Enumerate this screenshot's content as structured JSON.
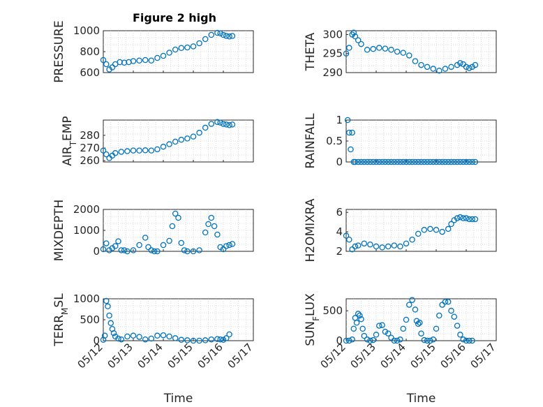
{
  "figure_title": "Figure 2 high",
  "colors": {
    "marker": "#0072BD",
    "axis": "#262626",
    "grid": "#d0d0d0"
  },
  "chart_data": [
    {
      "type": "scatter",
      "id": "pressure",
      "ylabel_parts": [
        "PRESSURE"
      ],
      "ylim": [
        600,
        1000
      ],
      "yticks": [
        600,
        800,
        1000
      ],
      "xlim": [
        "05/12",
        "05/17"
      ],
      "xticks": [],
      "grid": true,
      "x": [
        0.0,
        0.1,
        0.2,
        0.3,
        0.4,
        0.55,
        0.7,
        0.85,
        1.0,
        1.2,
        1.4,
        1.6,
        1.8,
        2.0,
        2.2,
        2.4,
        2.6,
        2.8,
        3.0,
        3.2,
        3.4,
        3.6,
        3.8,
        3.9,
        4.0,
        4.1,
        4.2,
        4.3
      ],
      "y": [
        720,
        680,
        630,
        650,
        680,
        700,
        695,
        700,
        710,
        715,
        720,
        715,
        740,
        760,
        790,
        820,
        835,
        840,
        850,
        880,
        920,
        960,
        980,
        975,
        960,
        950,
        945,
        950
      ]
    },
    {
      "type": "scatter",
      "id": "theta",
      "ylabel_parts": [
        "THETA"
      ],
      "ylim": [
        290,
        301
      ],
      "yticks": [
        290,
        295,
        300
      ],
      "xlim": [
        "05/12",
        "05/17"
      ],
      "xticks": [],
      "grid": true,
      "x": [
        0.0,
        0.1,
        0.2,
        0.25,
        0.3,
        0.4,
        0.5,
        0.7,
        0.9,
        1.1,
        1.3,
        1.5,
        1.7,
        1.9,
        2.1,
        2.3,
        2.5,
        2.7,
        2.9,
        3.1,
        3.3,
        3.5,
        3.7,
        3.8,
        3.9,
        4.0,
        4.1,
        4.2,
        4.3
      ],
      "y": [
        295,
        296.5,
        300,
        300.5,
        299.5,
        298.5,
        297.5,
        296,
        296.2,
        296.5,
        296.3,
        296,
        295.5,
        295.2,
        294.5,
        293,
        292,
        291.5,
        291,
        290.5,
        291,
        291.5,
        292,
        292.5,
        292.2,
        291.5,
        291.2,
        291.5,
        292
      ]
    },
    {
      "type": "scatter",
      "id": "air_temp",
      "ylabel_parts": [
        "AIR",
        "T",
        "EMP"
      ],
      "ylim": [
        259,
        292
      ],
      "yticks": [
        260,
        270,
        280
      ],
      "xlim": [
        "05/12",
        "05/17"
      ],
      "xticks": [],
      "grid": true,
      "x": [
        0.0,
        0.1,
        0.2,
        0.3,
        0.4,
        0.6,
        0.8,
        1.0,
        1.2,
        1.4,
        1.6,
        1.8,
        2.0,
        2.2,
        2.4,
        2.6,
        2.8,
        3.0,
        3.2,
        3.4,
        3.6,
        3.8,
        3.9,
        4.0,
        4.1,
        4.2,
        4.3
      ],
      "y": [
        268,
        265,
        262,
        264,
        266,
        267,
        267.5,
        268,
        268,
        268.2,
        268,
        269,
        271,
        273,
        275,
        276.5,
        277.5,
        279,
        282,
        286,
        289,
        290.5,
        290,
        289,
        288.5,
        288,
        288.5
      ]
    },
    {
      "type": "scatter",
      "id": "rainfall",
      "ylabel_parts": [
        "RAINFALL"
      ],
      "ylim": [
        0,
        1
      ],
      "yticks": [
        0,
        0.5,
        1
      ],
      "xlim": [
        "05/12",
        "05/17"
      ],
      "xticks": [],
      "grid": true,
      "x": [
        0.05,
        0.1,
        0.15,
        0.2,
        0.25,
        0.3,
        0.4,
        0.5,
        0.6,
        0.7,
        0.8,
        0.9,
        1.0,
        1.1,
        1.2,
        1.3,
        1.4,
        1.5,
        1.6,
        1.7,
        1.8,
        1.9,
        2.0,
        2.1,
        2.2,
        2.3,
        2.4,
        2.5,
        2.6,
        2.7,
        2.8,
        2.9,
        3.0,
        3.1,
        3.2,
        3.3,
        3.4,
        3.5,
        3.6,
        3.7,
        3.8,
        3.9,
        4.0,
        4.1,
        4.2,
        4.3
      ],
      "y": [
        1.0,
        0.7,
        0.3,
        0.7,
        0,
        0,
        0,
        0,
        0,
        0,
        0,
        0,
        0,
        0,
        0,
        0,
        0,
        0,
        0,
        0,
        0,
        0,
        0,
        0,
        0,
        0,
        0,
        0,
        0,
        0,
        0,
        0,
        0,
        0,
        0,
        0,
        0,
        0,
        0,
        0,
        0,
        0,
        0,
        0,
        0,
        0
      ]
    },
    {
      "type": "scatter",
      "id": "mixdepth",
      "ylabel_parts": [
        "MIXDEPTH"
      ],
      "ylim": [
        0,
        2000
      ],
      "yticks": [
        0,
        1000,
        2000
      ],
      "xlim": [
        "05/12",
        "05/17"
      ],
      "xticks": [],
      "grid": true,
      "x": [
        0.0,
        0.1,
        0.2,
        0.3,
        0.4,
        0.5,
        0.6,
        0.7,
        0.8,
        1.0,
        1.2,
        1.4,
        1.5,
        1.6,
        1.7,
        1.8,
        2.0,
        2.2,
        2.3,
        2.4,
        2.5,
        2.6,
        2.7,
        2.8,
        3.0,
        3.2,
        3.4,
        3.5,
        3.6,
        3.7,
        3.8,
        3.9,
        4.0,
        4.1,
        4.2,
        4.3
      ],
      "y": [
        100,
        380,
        50,
        150,
        250,
        480,
        50,
        50,
        0,
        50,
        300,
        650,
        200,
        50,
        0,
        0,
        300,
        500,
        1200,
        1800,
        1600,
        400,
        50,
        0,
        0,
        50,
        900,
        1300,
        1600,
        1200,
        800,
        200,
        100,
        250,
        300,
        350
      ]
    },
    {
      "type": "scatter",
      "id": "h2omixra",
      "ylabel_parts": [
        "H2OMIXRA"
      ],
      "ylim": [
        2,
        6.3
      ],
      "yticks": [
        2,
        4,
        6
      ],
      "xlim": [
        "05/12",
        "05/17"
      ],
      "xticks": [],
      "grid": true,
      "x": [
        0.0,
        0.1,
        0.2,
        0.3,
        0.4,
        0.6,
        0.8,
        1.0,
        1.2,
        1.4,
        1.6,
        1.8,
        2.0,
        2.2,
        2.4,
        2.6,
        2.8,
        3.0,
        3.2,
        3.4,
        3.5,
        3.6,
        3.7,
        3.8,
        3.9,
        4.0,
        4.1,
        4.2,
        4.3
      ],
      "y": [
        3.6,
        3.2,
        2.2,
        2.5,
        2.6,
        2.8,
        2.7,
        2.5,
        2.4,
        2.5,
        2.6,
        2.5,
        2.8,
        3.2,
        3.8,
        4.2,
        4.3,
        4.2,
        4.0,
        4.3,
        4.8,
        5.2,
        5.4,
        5.5,
        5.4,
        5.4,
        5.3,
        5.3,
        5.3
      ]
    },
    {
      "type": "scatter",
      "id": "terr_msl",
      "ylabel_parts": [
        "TERR",
        "M",
        "SL"
      ],
      "ylim": [
        0,
        1000
      ],
      "yticks": [
        0,
        500,
        1000
      ],
      "xlim": [
        "05/12",
        "05/17"
      ],
      "xticks": [
        "05/12",
        "05/13",
        "05/14",
        "05/15",
        "05/16",
        "05/17"
      ],
      "xlabel": "Time",
      "grid": true,
      "x": [
        0.0,
        0.05,
        0.1,
        0.15,
        0.2,
        0.25,
        0.3,
        0.35,
        0.4,
        0.5,
        0.6,
        0.8,
        1.0,
        1.2,
        1.4,
        1.6,
        1.8,
        2.0,
        2.2,
        2.4,
        2.6,
        2.8,
        3.0,
        3.2,
        3.4,
        3.6,
        3.8,
        3.9,
        4.0,
        4.1,
        4.2
      ],
      "y": [
        20,
        120,
        950,
        820,
        600,
        420,
        280,
        180,
        100,
        50,
        30,
        100,
        120,
        90,
        30,
        50,
        120,
        130,
        100,
        60,
        20,
        10,
        0,
        0,
        10,
        30,
        40,
        30,
        20,
        60,
        150
      ]
    },
    {
      "type": "scatter",
      "id": "sun_flux",
      "ylabel_parts": [
        "SUN",
        "F",
        "LUX"
      ],
      "ylim": [
        0,
        700
      ],
      "yticks": [
        0,
        500
      ],
      "xlim": [
        "05/12",
        "05/17"
      ],
      "xticks": [
        "05/12",
        "05/13",
        "05/14",
        "05/15",
        "05/16",
        "05/17"
      ],
      "xlabel": "Time",
      "grid": true,
      "x": [
        0.0,
        0.1,
        0.2,
        0.25,
        0.3,
        0.35,
        0.4,
        0.45,
        0.5,
        0.55,
        0.6,
        0.7,
        0.8,
        0.9,
        1.0,
        1.1,
        1.2,
        1.3,
        1.4,
        1.5,
        1.6,
        1.7,
        1.8,
        1.9,
        2.0,
        2.1,
        2.2,
        2.3,
        2.35,
        2.4,
        2.45,
        2.5,
        2.6,
        2.7,
        2.8,
        2.9,
        3.0,
        3.1,
        3.2,
        3.3,
        3.4,
        3.5,
        3.6,
        3.7,
        3.8,
        3.9,
        4.0,
        4.1,
        4.2
      ],
      "y": [
        0,
        0,
        20,
        200,
        380,
        300,
        450,
        420,
        360,
        200,
        80,
        20,
        0,
        10,
        100,
        250,
        260,
        150,
        120,
        50,
        0,
        0,
        20,
        200,
        350,
        600,
        680,
        520,
        330,
        280,
        300,
        120,
        10,
        0,
        0,
        20,
        200,
        420,
        600,
        650,
        650,
        500,
        400,
        250,
        100,
        20,
        0,
        0,
        0
      ]
    }
  ]
}
